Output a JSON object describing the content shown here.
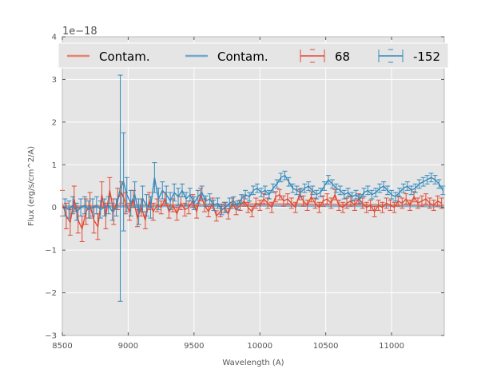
{
  "chart_data": {
    "type": "line",
    "title": "",
    "xlabel": "Wavelength (A)",
    "ylabel": "Flux (erg/s/cm^2/A)",
    "y_offset_text": "1e−18",
    "xlim": [
      8500,
      11400
    ],
    "ylim": [
      -3,
      4
    ],
    "y_scale": 1e-18,
    "xticks": [
      8500,
      9000,
      9500,
      10000,
      10500,
      11000
    ],
    "xtick_labels": [
      "8500",
      "9000",
      "9500",
      "10000",
      "10500",
      "11000"
    ],
    "yticks": [
      -3,
      -2,
      -1,
      0,
      1,
      2,
      3,
      4
    ],
    "ytick_labels": [
      "−3",
      "−2",
      "−1",
      "0",
      "1",
      "2",
      "3",
      "4"
    ],
    "grid": true,
    "legend_position": "top",
    "legend": [
      "Contam.",
      "Contam.",
      "68",
      "-152"
    ],
    "colors": {
      "red": "#e24a33",
      "blue": "#348abd",
      "red_light": "#e8836f",
      "blue_light": "#71a9cf",
      "bg": "#e5e5e5"
    },
    "series": [
      {
        "name": "Contam.",
        "kind": "contamination",
        "color": "#e8836f",
        "x": [
          8500,
          9000,
          9500,
          10000,
          10500,
          11000,
          11400
        ],
        "y": [
          0.02,
          0.05,
          0.06,
          0.08,
          0.07,
          0.06,
          0.05
        ]
      },
      {
        "name": "Contam.",
        "kind": "contamination",
        "color": "#71a9cf",
        "x": [
          8500,
          9000,
          9500,
          10000,
          10500,
          11000,
          11400
        ],
        "y": [
          0.0,
          0.02,
          0.03,
          0.04,
          0.03,
          0.03,
          0.02
        ]
      },
      {
        "name": "68",
        "kind": "errorbar",
        "color": "#e24a33",
        "x": [
          8500,
          8530,
          8560,
          8590,
          8620,
          8650,
          8680,
          8710,
          8740,
          8770,
          8800,
          8830,
          8860,
          8890,
          8920,
          8950,
          8980,
          9010,
          9040,
          9070,
          9100,
          9130,
          9160,
          9190,
          9220,
          9250,
          9280,
          9310,
          9340,
          9370,
          9400,
          9430,
          9460,
          9490,
          9520,
          9550,
          9580,
          9610,
          9640,
          9670,
          9700,
          9730,
          9760,
          9790,
          9820,
          9850,
          9880,
          9910,
          9940,
          9970,
          10000,
          10030,
          10060,
          10090,
          10120,
          10150,
          10180,
          10210,
          10240,
          10270,
          10300,
          10330,
          10360,
          10390,
          10420,
          10450,
          10480,
          10510,
          10540,
          10570,
          10600,
          10630,
          10660,
          10690,
          10720,
          10750,
          10780,
          10810,
          10840,
          10870,
          10900,
          10930,
          10960,
          10990,
          11020,
          11050,
          11080,
          11110,
          11140,
          11170,
          11200,
          11230,
          11260,
          11290,
          11320,
          11350,
          11380
        ],
        "y": [
          0.1,
          -0.2,
          -0.35,
          0.2,
          -0.3,
          -0.5,
          -0.1,
          0.05,
          -0.3,
          -0.45,
          0.3,
          -0.2,
          0.4,
          -0.1,
          0.2,
          0.35,
          0.1,
          -0.1,
          0.2,
          -0.25,
          0.0,
          -0.3,
          0.15,
          -0.1,
          0.05,
          0.0,
          0.2,
          -0.1,
          0.05,
          -0.15,
          0.1,
          -0.05,
          0.0,
          0.15,
          -0.1,
          0.3,
          0.05,
          -0.1,
          0.1,
          -0.2,
          -0.1,
          0.0,
          -0.15,
          0.1,
          -0.05,
          0.05,
          0.15,
          0.0,
          -0.1,
          0.1,
          0.05,
          0.2,
          0.1,
          0.0,
          0.25,
          0.3,
          0.15,
          0.2,
          0.1,
          0.0,
          0.3,
          0.15,
          0.05,
          0.25,
          0.1,
          0.0,
          0.15,
          0.2,
          0.1,
          0.3,
          0.05,
          0.0,
          0.1,
          0.15,
          0.05,
          0.2,
          0.1,
          0.0,
          0.05,
          -0.1,
          0.05,
          0.0,
          0.1,
          0.05,
          0.0,
          0.15,
          0.1,
          0.2,
          0.05,
          0.25,
          0.1,
          0.15,
          0.2,
          0.1,
          0.05,
          0.15,
          0.1
        ],
        "err": [
          0.3,
          0.3,
          0.3,
          0.3,
          0.3,
          0.3,
          0.3,
          0.3,
          0.3,
          0.3,
          0.3,
          0.3,
          0.3,
          0.3,
          0.25,
          0.25,
          0.25,
          0.2,
          0.2,
          0.2,
          0.2,
          0.2,
          0.2,
          0.2,
          0.15,
          0.15,
          0.15,
          0.15,
          0.15,
          0.15,
          0.15,
          0.15,
          0.15,
          0.15,
          0.15,
          0.15,
          0.15,
          0.12,
          0.12,
          0.12,
          0.12,
          0.12,
          0.12,
          0.12,
          0.12,
          0.12,
          0.12,
          0.12,
          0.12,
          0.12,
          0.12,
          0.12,
          0.12,
          0.12,
          0.12,
          0.12,
          0.12,
          0.12,
          0.12,
          0.12,
          0.12,
          0.12,
          0.12,
          0.12,
          0.12,
          0.12,
          0.12,
          0.12,
          0.12,
          0.12,
          0.12,
          0.12,
          0.12,
          0.12,
          0.12,
          0.12,
          0.12,
          0.12,
          0.12,
          0.12,
          0.12,
          0.12,
          0.12,
          0.12,
          0.12,
          0.12,
          0.12,
          0.12,
          0.12,
          0.12,
          0.12,
          0.12,
          0.12,
          0.12,
          0.12,
          0.12,
          0.12
        ]
      },
      {
        "name": "-152",
        "kind": "errorbar",
        "color": "#348abd",
        "x": [
          8520,
          8550,
          8580,
          8610,
          8640,
          8670,
          8700,
          8730,
          8760,
          8790,
          8820,
          8850,
          8880,
          8910,
          8940,
          8965,
          8990,
          9020,
          9050,
          9080,
          9110,
          9140,
          9170,
          9200,
          9230,
          9260,
          9290,
          9320,
          9350,
          9380,
          9410,
          9440,
          9470,
          9500,
          9530,
          9560,
          9590,
          9620,
          9650,
          9680,
          9710,
          9740,
          9770,
          9800,
          9830,
          9860,
          9890,
          9920,
          9950,
          9980,
          10010,
          10040,
          10070,
          10100,
          10130,
          10160,
          10190,
          10220,
          10250,
          10280,
          10310,
          10340,
          10370,
          10400,
          10430,
          10460,
          10490,
          10520,
          10550,
          10580,
          10610,
          10640,
          10670,
          10700,
          10730,
          10760,
          10790,
          10820,
          10850,
          10880,
          10910,
          10940,
          10970,
          11000,
          11030,
          11060,
          11090,
          11120,
          11150,
          11180,
          11210,
          11240,
          11270,
          11300,
          11330,
          11360,
          11390
        ],
        "y": [
          0.0,
          -0.05,
          0.05,
          -0.1,
          0.0,
          0.05,
          -0.05,
          0.0,
          0.05,
          -0.05,
          0.0,
          0.05,
          -0.1,
          0.0,
          0.45,
          0.6,
          0.3,
          0.1,
          0.3,
          -0.1,
          0.2,
          0.05,
          0.0,
          0.7,
          0.2,
          0.4,
          0.3,
          0.15,
          0.35,
          0.25,
          0.4,
          0.2,
          0.3,
          0.1,
          0.25,
          0.35,
          0.15,
          0.2,
          0.05,
          0.1,
          -0.05,
          0.0,
          0.1,
          0.15,
          0.05,
          0.2,
          0.3,
          0.25,
          0.4,
          0.45,
          0.35,
          0.4,
          0.3,
          0.45,
          0.55,
          0.7,
          0.75,
          0.6,
          0.45,
          0.4,
          0.35,
          0.45,
          0.5,
          0.4,
          0.3,
          0.35,
          0.5,
          0.65,
          0.55,
          0.45,
          0.4,
          0.3,
          0.35,
          0.25,
          0.3,
          0.2,
          0.35,
          0.4,
          0.3,
          0.35,
          0.45,
          0.5,
          0.4,
          0.3,
          0.25,
          0.35,
          0.45,
          0.5,
          0.4,
          0.45,
          0.55,
          0.6,
          0.65,
          0.7,
          0.65,
          0.55,
          0.4
        ],
        "err": [
          0.2,
          0.2,
          0.2,
          0.2,
          0.2,
          0.2,
          0.2,
          0.2,
          0.2,
          0.2,
          0.2,
          0.2,
          0.2,
          0.2,
          2.65,
          1.15,
          0.4,
          0.3,
          0.3,
          0.3,
          0.3,
          0.25,
          0.25,
          0.35,
          0.25,
          0.2,
          0.2,
          0.2,
          0.2,
          0.2,
          0.15,
          0.15,
          0.15,
          0.15,
          0.15,
          0.15,
          0.12,
          0.12,
          0.12,
          0.12,
          0.12,
          0.12,
          0.12,
          0.1,
          0.1,
          0.1,
          0.1,
          0.1,
          0.1,
          0.1,
          0.1,
          0.1,
          0.1,
          0.1,
          0.1,
          0.1,
          0.1,
          0.1,
          0.1,
          0.1,
          0.1,
          0.1,
          0.1,
          0.1,
          0.1,
          0.1,
          0.1,
          0.1,
          0.1,
          0.1,
          0.1,
          0.1,
          0.1,
          0.1,
          0.1,
          0.1,
          0.1,
          0.1,
          0.1,
          0.1,
          0.1,
          0.1,
          0.1,
          0.1,
          0.1,
          0.1,
          0.1,
          0.1,
          0.1,
          0.1,
          0.1,
          0.1,
          0.1,
          0.1,
          0.1,
          0.1,
          0.1
        ]
      }
    ]
  }
}
